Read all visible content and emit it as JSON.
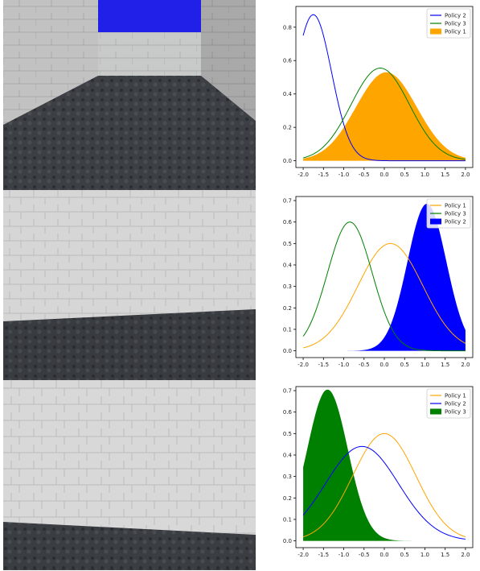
{
  "colors": {
    "policy_1": "#ffa500",
    "policy_2": "#0000ff",
    "policy_3": "#008000"
  },
  "frames": [
    {
      "view": "corridor-with-sky",
      "sky_color": "#2020e8"
    },
    {
      "view": "wall-close-angled"
    },
    {
      "view": "wall-close-flat"
    }
  ],
  "chart_data": [
    {
      "type": "line",
      "xlim": [
        -2.0,
        2.0
      ],
      "ylim": [
        0.0,
        0.9
      ],
      "xticks": [
        "-2.0",
        "-1.5",
        "-1.0",
        "-0.5",
        "0.0",
        "0.5",
        "1.0",
        "1.5",
        "2.0"
      ],
      "yticks": [
        "0.0",
        "0.2",
        "0.4",
        "0.6",
        "0.8"
      ],
      "ytick_values": [
        0.0,
        0.2,
        0.4,
        0.6,
        0.8
      ],
      "legend_position": "top-right",
      "legend": [
        "Policy 2",
        "Policy 3",
        "Policy 1"
      ],
      "series": [
        {
          "name": "Policy 2",
          "kind": "line",
          "color": "#0000ff",
          "peak": 0.875,
          "peak_x": -1.75,
          "spread": 0.45
        },
        {
          "name": "Policy 3",
          "kind": "line",
          "color": "#008000",
          "peak": 0.555,
          "peak_x": -0.1,
          "spread": 0.72
        },
        {
          "name": "Policy 1",
          "kind": "filled",
          "color": "#ffa500",
          "peak": 0.53,
          "peak_x": 0.05,
          "spread": 0.75
        }
      ]
    },
    {
      "type": "line",
      "xlim": [
        -2.0,
        2.0
      ],
      "ylim": [
        0.0,
        0.7
      ],
      "xticks": [
        "-2.0",
        "-1.5",
        "-1.0",
        "-0.5",
        "0.0",
        "0.5",
        "1.0",
        "1.5",
        "2.0"
      ],
      "yticks": [
        "0.0",
        "0.1",
        "0.2",
        "0.3",
        "0.4",
        "0.5",
        "0.6",
        "0.7"
      ],
      "ytick_values": [
        0.0,
        0.1,
        0.2,
        0.3,
        0.4,
        0.5,
        0.6,
        0.7
      ],
      "legend_position": "top-right",
      "legend": [
        "Policy 1",
        "Policy 3",
        "Policy 2"
      ],
      "series": [
        {
          "name": "Policy 1",
          "kind": "line",
          "color": "#ffa500",
          "peak": 0.5,
          "peak_x": 0.15,
          "spread": 0.8
        },
        {
          "name": "Policy 3",
          "kind": "line",
          "color": "#008000",
          "peak": 0.6,
          "peak_x": -0.85,
          "spread": 0.55
        },
        {
          "name": "Policy 2",
          "kind": "filled",
          "color": "#0000ff",
          "peak": 0.685,
          "peak_x": 1.05,
          "spread": 0.48
        }
      ]
    },
    {
      "type": "line",
      "xlim": [
        -2.0,
        2.0
      ],
      "ylim": [
        0.0,
        0.7
      ],
      "xticks": [
        "-2.0",
        "-1.5",
        "-1.0",
        "-0.5",
        "0.0",
        "0.5",
        "1.0",
        "1.5",
        "2.0"
      ],
      "yticks": [
        "0.0",
        "0.1",
        "0.2",
        "0.3",
        "0.4",
        "0.5",
        "0.6",
        "0.7"
      ],
      "ytick_values": [
        0.0,
        0.1,
        0.2,
        0.3,
        0.4,
        0.5,
        0.6,
        0.7
      ],
      "legend_position": "top-right",
      "legend": [
        "Policy 1",
        "Policy 2",
        "Policy 3"
      ],
      "series": [
        {
          "name": "Policy 1",
          "kind": "line",
          "color": "#ffa500",
          "peak": 0.5,
          "peak_x": 0.0,
          "spread": 0.78
        },
        {
          "name": "Policy 2",
          "kind": "line",
          "color": "#0000ff",
          "peak": 0.44,
          "peak_x": -0.55,
          "spread": 0.9
        },
        {
          "name": "Policy 3",
          "kind": "filled",
          "color": "#008000",
          "peak": 0.705,
          "peak_x": -1.4,
          "spread": 0.5
        }
      ]
    }
  ]
}
